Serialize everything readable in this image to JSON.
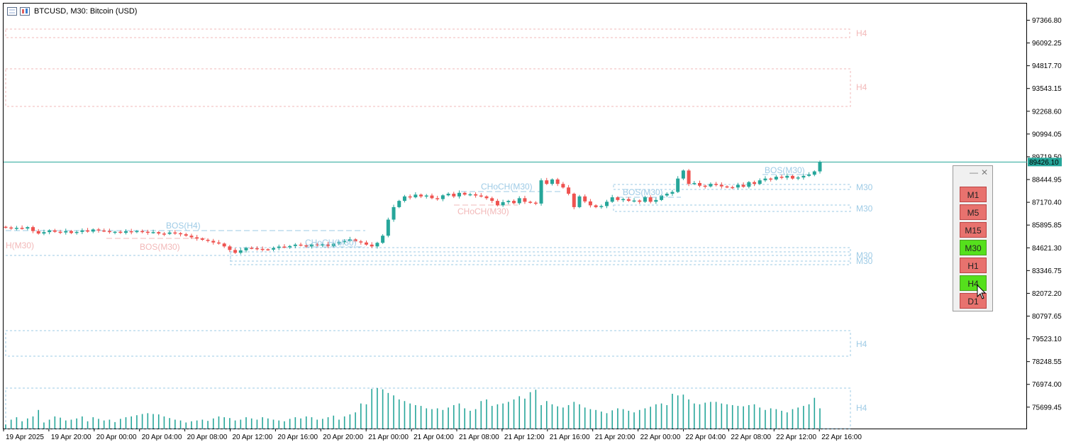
{
  "window": {
    "title": "BTCUSD, M30:  Bitcoin (USD)"
  },
  "price_axis": {
    "labels": [
      "97366.80",
      "96092.25",
      "94817.70",
      "93543.15",
      "92268.60",
      "90994.05",
      "89719.50",
      "88444.95",
      "87170.40",
      "85895.85",
      "84621.30",
      "83346.75",
      "82072.20",
      "80797.65",
      "79523.10",
      "78248.55",
      "76974.00",
      "75699.45"
    ],
    "current_price": "89426.10",
    "current_price_color": "#26a69a"
  },
  "time_axis": {
    "labels": [
      "19 Apr 2025",
      "19 Apr 20:00",
      "20 Apr 00:00",
      "20 Apr 04:00",
      "20 Apr 08:00",
      "20 Apr 12:00",
      "20 Apr 16:00",
      "20 Apr 20:00",
      "21 Apr 00:00",
      "21 Apr 04:00",
      "21 Apr 08:00",
      "21 Apr 12:00",
      "21 Apr 16:00",
      "21 Apr 20:00",
      "22 Apr 00:00",
      "22 Apr 04:00",
      "22 Apr 08:00",
      "22 Apr 12:00",
      "22 Apr 16:00"
    ]
  },
  "annotations": {
    "bos_h4": "BOS(H4)",
    "bos_m30_left": "BOS(M30)",
    "h_m30_left": "H(M30)",
    "choch_m30_a": "CHoCH(M30)",
    "choch_m30_b": "CHoCH(M30)",
    "choch_m30_c": "CHoCH(M30)",
    "bos_m30_mid": "BOS(M30)",
    "bos_m30_right": "BOS(M30)",
    "zone_h4_1": "H4",
    "zone_h4_2": "H4",
    "zone_h4_3": "H4",
    "zone_h4_4": "H4",
    "zone_m30_1": "M30",
    "zone_m30_2": "M30",
    "zone_m30_3": "M30",
    "zone_m30_4": "M30"
  },
  "colors": {
    "bull": "#26a69a",
    "bear": "#ef5350",
    "volume": "#26a69a",
    "bull_label": "#9ecbe6",
    "bear_label": "#f2b8b8"
  },
  "timeframe_panel": {
    "buttons": [
      {
        "label": "M1",
        "active": false
      },
      {
        "label": "M5",
        "active": false
      },
      {
        "label": "M15",
        "active": false
      },
      {
        "label": "M30",
        "active": true
      },
      {
        "label": "H1",
        "active": false
      },
      {
        "label": "H4",
        "active": true
      },
      {
        "label": "D1",
        "active": false
      }
    ]
  },
  "chart_data": {
    "type": "candlestick",
    "title": "BTCUSD, M30:  Bitcoin (USD)",
    "ylim": [
      74500,
      98300
    ],
    "symbol": "BTCUSD",
    "timeframe": "M30",
    "closes": [
      85760,
      85720,
      85740,
      85700,
      85780,
      85560,
      85420,
      85500,
      85600,
      85520,
      85480,
      85560,
      85450,
      85510,
      85600,
      85530,
      85650,
      85590,
      85560,
      85500,
      85520,
      85460,
      85550,
      85500,
      85560,
      85520,
      85470,
      85500,
      85420,
      85400,
      85480,
      85440,
      85380,
      85300,
      85210,
      85140,
      85070,
      85010,
      84920,
      84860,
      84700,
      84500,
      84340,
      84480,
      84620,
      84600,
      84560,
      84540,
      84520,
      84610,
      84690,
      84650,
      84720,
      84800,
      84760,
      84700,
      84810,
      84750,
      84820,
      84720,
      84860,
      84960,
      85000,
      85100,
      84980,
      84920,
      84800,
      84700,
      84900,
      85300,
      86200,
      86900,
      87250,
      87500,
      87450,
      87600,
      87500,
      87550,
      87400,
      87350,
      87560,
      87650,
      87500,
      87700,
      87600,
      87620,
      87550,
      87500,
      87400,
      87250,
      87000,
      87180,
      87250,
      87120,
      87400,
      87200,
      87150,
      87100,
      88400,
      88200,
      88450,
      88200,
      88000,
      87650,
      86900,
      87500,
      87220,
      87000,
      86900,
      86960,
      87200,
      87450,
      87300,
      87350,
      87250,
      87270,
      87200,
      87450,
      87200,
      87300,
      87550,
      87650,
      87750,
      88500,
      88950,
      88200,
      88250,
      88100,
      88060,
      88200,
      88150,
      88060,
      88020,
      88000,
      88150,
      88040,
      88300,
      88200,
      88400,
      88500,
      88450,
      88600,
      88550,
      88650,
      88500,
      88560,
      88650,
      88720,
      88900,
      89426
    ],
    "volumes": [
      0.1,
      0.22,
      0.28,
      0.18,
      0.25,
      0.3,
      0.46,
      0.15,
      0.22,
      0.3,
      0.27,
      0.2,
      0.22,
      0.25,
      0.3,
      0.18,
      0.28,
      0.24,
      0.2,
      0.22,
      0.16,
      0.24,
      0.28,
      0.3,
      0.33,
      0.36,
      0.38,
      0.36,
      0.35,
      0.3,
      0.26,
      0.22,
      0.2,
      0.15,
      0.18,
      0.2,
      0.22,
      0.19,
      0.25,
      0.3,
      0.28,
      0.26,
      0.2,
      0.22,
      0.28,
      0.25,
      0.22,
      0.28,
      0.25,
      0.22,
      0.2,
      0.18,
      0.24,
      0.28,
      0.25,
      0.3,
      0.28,
      0.22,
      0.24,
      0.28,
      0.32,
      0.22,
      0.3,
      0.35,
      0.4,
      0.62,
      0.6,
      0.98,
      1.0,
      0.97,
      0.88,
      0.82,
      0.72,
      0.68,
      0.62,
      0.58,
      0.56,
      0.5,
      0.48,
      0.5,
      0.46,
      0.52,
      0.58,
      0.62,
      0.5,
      0.44,
      0.48,
      0.68,
      0.72,
      0.56,
      0.6,
      0.62,
      0.66,
      0.72,
      0.8,
      0.74,
      0.9,
      0.96,
      0.58,
      0.68,
      0.6,
      0.55,
      0.52,
      0.58,
      0.66,
      0.6,
      0.52,
      0.48,
      0.46,
      0.42,
      0.38,
      0.45,
      0.5,
      0.48,
      0.44,
      0.4,
      0.46,
      0.5,
      0.54,
      0.6,
      0.62,
      0.58,
      0.86,
      0.82,
      0.84,
      0.72,
      0.62,
      0.6,
      0.64,
      0.66,
      0.66,
      0.62,
      0.6,
      0.58,
      0.56,
      0.55,
      0.58,
      0.6,
      0.52,
      0.46,
      0.5,
      0.48,
      0.44,
      0.4,
      0.48,
      0.52,
      0.56,
      0.6,
      0.76,
      0.5
    ]
  }
}
